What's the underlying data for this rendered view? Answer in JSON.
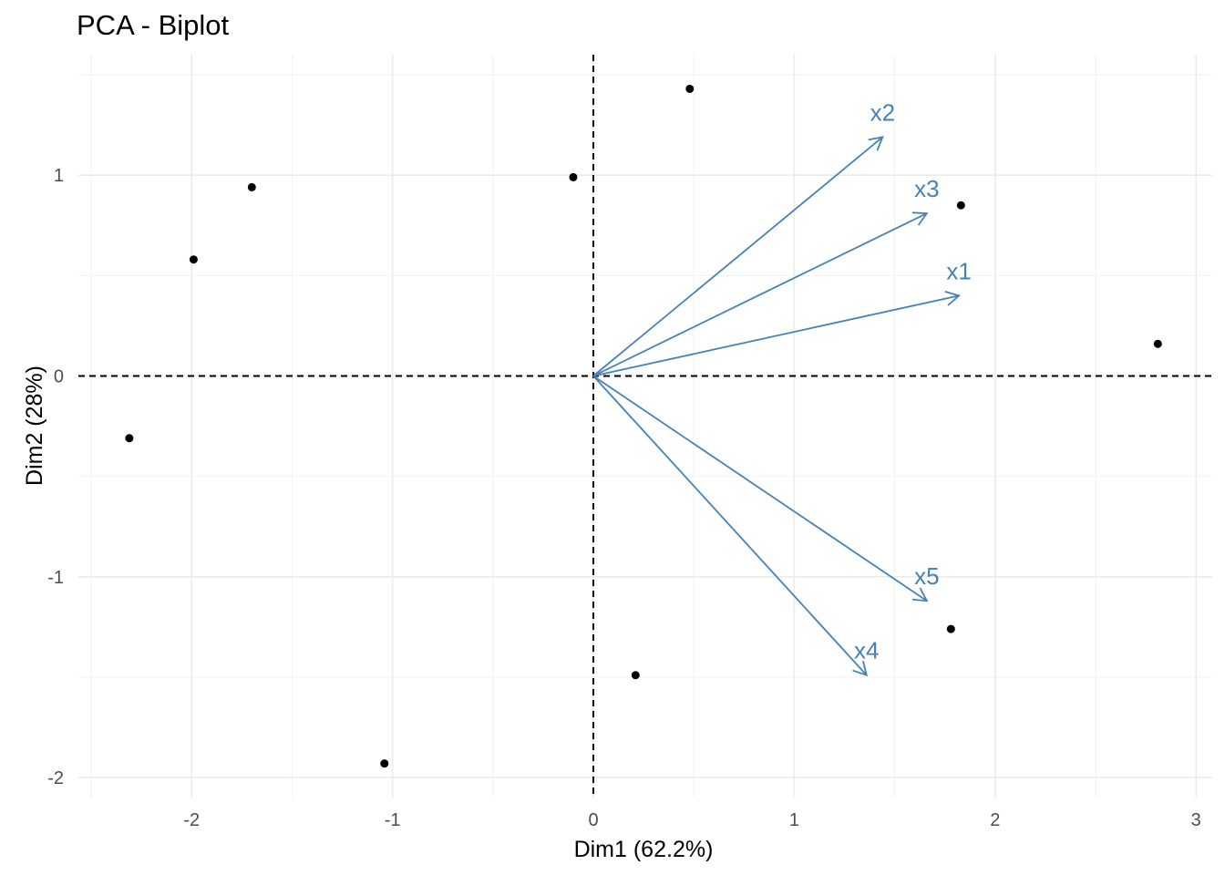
{
  "chart_data": {
    "type": "scatter",
    "title": "PCA - Biplot",
    "xlabel": "Dim1 (62.2%)",
    "ylabel": "Dim2 (28%)",
    "xlim": [
      -2.5,
      3.05
    ],
    "ylim": [
      -2.07,
      1.6
    ],
    "x_ticks": [
      -2,
      -1,
      0,
      1,
      2,
      3
    ],
    "y_ticks": [
      -2,
      -1,
      0,
      1
    ],
    "grid": true,
    "reference_lines": {
      "x": 0,
      "y": 0,
      "style": "dashed"
    },
    "points": [
      {
        "x": -2.31,
        "y": -0.31
      },
      {
        "x": -1.99,
        "y": 0.58
      },
      {
        "x": -1.7,
        "y": 0.94
      },
      {
        "x": -1.04,
        "y": -1.93
      },
      {
        "x": -0.1,
        "y": 0.99
      },
      {
        "x": 0.48,
        "y": 1.43
      },
      {
        "x": 0.21,
        "y": -1.49
      },
      {
        "x": 1.83,
        "y": 0.85
      },
      {
        "x": 1.78,
        "y": -1.26
      },
      {
        "x": 2.81,
        "y": 0.16
      }
    ],
    "vectors": [
      {
        "name": "x1",
        "x": 1.82,
        "y": 0.4
      },
      {
        "name": "x2",
        "x": 1.44,
        "y": 1.19
      },
      {
        "name": "x3",
        "x": 1.66,
        "y": 0.81
      },
      {
        "name": "x4",
        "x": 1.36,
        "y": -1.49
      },
      {
        "name": "x5",
        "x": 1.66,
        "y": -1.12
      }
    ],
    "vector_color": "#4682B4",
    "point_color": "#000000"
  }
}
